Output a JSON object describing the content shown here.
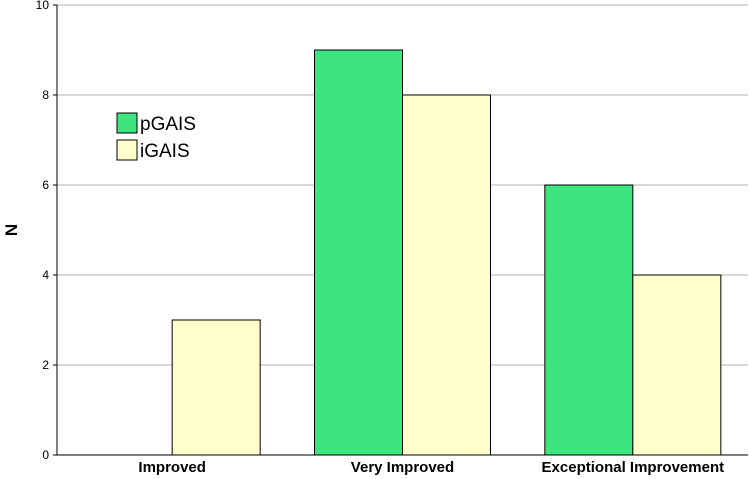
{
  "chart_data": {
    "type": "bar",
    "title": "",
    "xlabel": "",
    "ylabel": "N",
    "ylim": [
      0,
      10
    ],
    "yticks": [
      0,
      2,
      4,
      6,
      8,
      10
    ],
    "grid": true,
    "legend_position": "left",
    "categories": [
      "Improved",
      "Very Improved",
      "Exceptional Improvement"
    ],
    "series": [
      {
        "name": "pGAIS",
        "values": [
          0,
          9,
          6
        ],
        "color": "#3de57f"
      },
      {
        "name": "iGAIS",
        "values": [
          3,
          8,
          4
        ],
        "color": "#ffffcc"
      }
    ]
  }
}
